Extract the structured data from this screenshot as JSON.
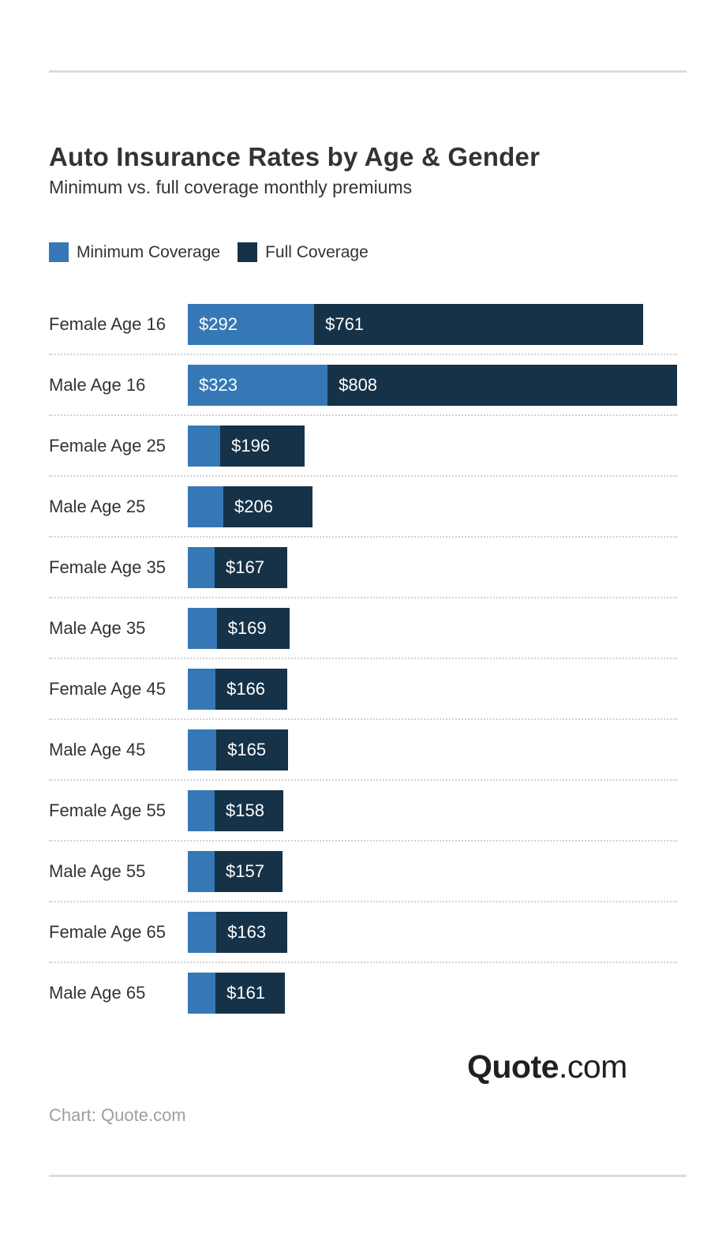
{
  "header": {
    "title": "Auto Insurance Rates by Age & Gender",
    "subtitle": "Minimum vs. full coverage monthly premiums"
  },
  "footer": {
    "logo_bold": "Quote",
    "logo_light": ".com",
    "credit": "Chart: Quote.com"
  },
  "chart_data": {
    "type": "bar",
    "orientation": "horizontal",
    "stacked": true,
    "title": "Auto Insurance Rates by Age & Gender",
    "subtitle": "Minimum vs. full coverage monthly premiums",
    "units": "USD per month",
    "grid": false,
    "legend_position": "top",
    "xlim": [
      0,
      1131
    ],
    "categories": [
      "Female Age 16",
      "Male Age 16",
      "Female Age 25",
      "Male Age 25",
      "Female Age 35",
      "Male Age 35",
      "Female Age 45",
      "Male Age 45",
      "Female Age 55",
      "Male Age 55",
      "Female Age 65",
      "Male Age 65"
    ],
    "series": [
      {
        "name": "Minimum Coverage",
        "color": "#3578b5",
        "values": [
          292,
          323,
          75,
          82,
          62,
          67,
          64,
          66,
          62,
          62,
          66,
          64
        ],
        "labels": [
          "$292",
          "$323",
          "",
          "",
          "",
          "",
          "",
          "",
          "",
          "",
          "",
          ""
        ]
      },
      {
        "name": "Full Coverage",
        "color": "#163249",
        "values": [
          761,
          808,
          196,
          206,
          167,
          169,
          166,
          165,
          158,
          157,
          163,
          161
        ],
        "labels": [
          "$761",
          "$808",
          "$196",
          "$206",
          "$167",
          "$169",
          "$166",
          "$165",
          "$158",
          "$157",
          "$163",
          "$161"
        ]
      }
    ]
  }
}
